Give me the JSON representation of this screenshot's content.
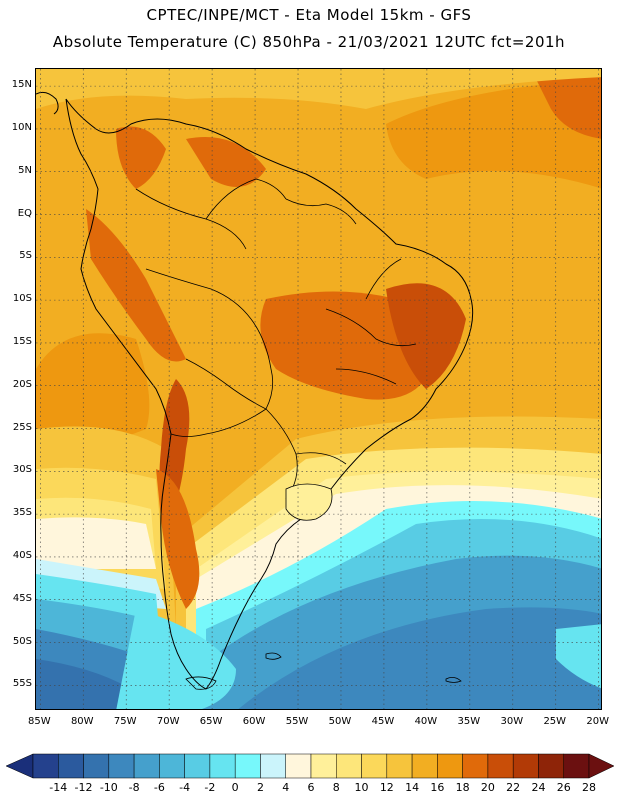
{
  "header": {
    "line1": "CPTEC/INPE/MCT -  Eta Model 15km - GFS",
    "line2": "Absolute Temperature (C) 850hPa - 21/03/2021 12UTC fct=201h"
  },
  "map": {
    "lat_labels": [
      "15N",
      "10N",
      "5N",
      "EQ",
      "5S",
      "10S",
      "15S",
      "20S",
      "25S",
      "30S",
      "35S",
      "40S",
      "45S",
      "50S",
      "55S"
    ],
    "lon_labels": [
      "85W",
      "80W",
      "75W",
      "70W",
      "65W",
      "60W",
      "55W",
      "50W",
      "45W",
      "40W",
      "35W",
      "30W",
      "25W",
      "20W"
    ],
    "extent": {
      "lon_min": -85.5,
      "lon_max": -19.5,
      "lat_min": -58,
      "lat_max": 17
    }
  },
  "colorbar": {
    "labels": [
      "-14",
      "-12",
      "-10",
      "-8",
      "-6",
      "-4",
      "-2",
      "0",
      "2",
      "4",
      "6",
      "8",
      "10",
      "12",
      "14",
      "16",
      "18",
      "20",
      "22",
      "24",
      "26",
      "28"
    ],
    "low_color": "#1a2f7a",
    "high_color": "#6b1010",
    "colors": [
      "#24418d",
      "#2b5a9e",
      "#3472ae",
      "#3d88be",
      "#45a0cc",
      "#4db6d8",
      "#58cce4",
      "#66e4f0",
      "#77f8fb",
      "#cbf4fb",
      "#fff6dc",
      "#fff09a",
      "#fde67a",
      "#fbd85a",
      "#f6c43c",
      "#f2ae22",
      "#ee9810",
      "#e06a0a",
      "#c94e08",
      "#b23a06",
      "#8e2408",
      "#6b1010"
    ]
  }
}
